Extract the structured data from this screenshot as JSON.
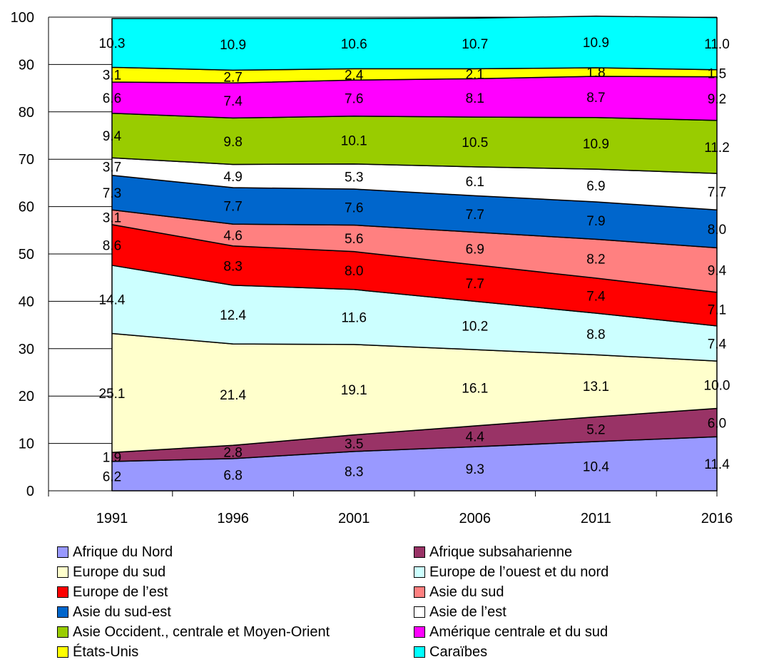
{
  "chart_data": {
    "type": "area",
    "stacked": true,
    "x": [
      "1991",
      "1996",
      "2001",
      "2006",
      "2011",
      "2016"
    ],
    "ylim": [
      0,
      100
    ],
    "yticks": [
      "0",
      "10",
      "20",
      "30",
      "40",
      "50",
      "60",
      "70",
      "80",
      "90",
      "100"
    ],
    "legend_position": "bottom",
    "series": [
      {
        "name": "Afrique du Nord",
        "color": "#9999FF",
        "values": [
          6.2,
          6.8,
          8.3,
          9.3,
          10.4,
          11.4
        ],
        "labels": [
          "6.2",
          "6.8",
          "8.3",
          "9.3",
          "10.4",
          "11.4"
        ]
      },
      {
        "name": "Afrique subsaharienne",
        "color": "#993366",
        "values": [
          1.9,
          2.8,
          3.5,
          4.4,
          5.2,
          6.0
        ],
        "labels": [
          "1.9",
          "2.8",
          "3.5",
          "4.4",
          "5.2",
          "6.0"
        ]
      },
      {
        "name": "Europe du sud",
        "color": "#FFFFCC",
        "values": [
          25.1,
          21.4,
          19.1,
          16.1,
          13.1,
          10.0
        ],
        "labels": [
          "25.1",
          "21.4",
          "19.1",
          "16.1",
          "13.1",
          "10.0"
        ]
      },
      {
        "name": "Europe de l’ouest et du nord",
        "color": "#CCFFFF",
        "values": [
          14.4,
          12.4,
          11.6,
          10.2,
          8.8,
          7.4
        ],
        "labels": [
          "14.4",
          "12.4",
          "11.6",
          "10.2",
          "8.8",
          "7.4"
        ]
      },
      {
        "name": "Europe de l’est",
        "color": "#FF0000",
        "values": [
          8.6,
          8.3,
          8.0,
          7.7,
          7.4,
          7.1
        ],
        "labels": [
          "8.6",
          "8.3",
          "8.0",
          "7.7",
          "7.4",
          "7.1"
        ]
      },
      {
        "name": "Asie du sud",
        "color": "#FF8080",
        "values": [
          3.1,
          4.6,
          5.6,
          6.9,
          8.2,
          9.4
        ],
        "labels": [
          "3.1",
          "4.6",
          "5.6",
          "6.9",
          "8.2",
          "9.4"
        ]
      },
      {
        "name": "Asie du sud-est",
        "color": "#0066CC",
        "values": [
          7.3,
          7.7,
          7.6,
          7.7,
          7.9,
          8.0
        ],
        "labels": [
          "7.3",
          "7.7",
          "7.6",
          "7.7",
          "7.9",
          "8.0"
        ]
      },
      {
        "name": "Asie de l’est",
        "color": "#FFFFFF",
        "values": [
          3.7,
          4.9,
          5.3,
          6.1,
          6.9,
          7.7
        ],
        "labels": [
          "3.7",
          "4.9",
          "5.3",
          "6.1",
          "6.9",
          "7.7"
        ]
      },
      {
        "name": "Asie Occident., centrale et Moyen-Orient",
        "color": "#99CC00",
        "values": [
          9.4,
          9.8,
          10.1,
          10.5,
          10.9,
          11.2
        ],
        "labels": [
          "9.4",
          "9.8",
          "10.1",
          "10.5",
          "10.9",
          "11.2"
        ]
      },
      {
        "name": "Amérique centrale et du sud",
        "color": "#FF00FF",
        "values": [
          6.6,
          7.4,
          7.6,
          8.1,
          8.7,
          9.2
        ],
        "labels": [
          "6.6",
          "7.4",
          "7.6",
          "8.1",
          "8.7",
          "9.2"
        ]
      },
      {
        "name": "États-Unis",
        "color": "#FFFF00",
        "values": [
          3.1,
          2.7,
          2.4,
          2.1,
          1.8,
          1.5
        ],
        "labels": [
          "3.1",
          "2.7",
          "2.4",
          "2.1",
          "1.8",
          "1.5"
        ]
      },
      {
        "name": "Caraïbes",
        "color": "#00FFFF",
        "values": [
          10.3,
          10.9,
          10.6,
          10.7,
          10.9,
          11.0
        ],
        "labels": [
          "10.3",
          "10.9",
          "10.6",
          "10.7",
          "10.9",
          "11.0"
        ]
      }
    ]
  }
}
